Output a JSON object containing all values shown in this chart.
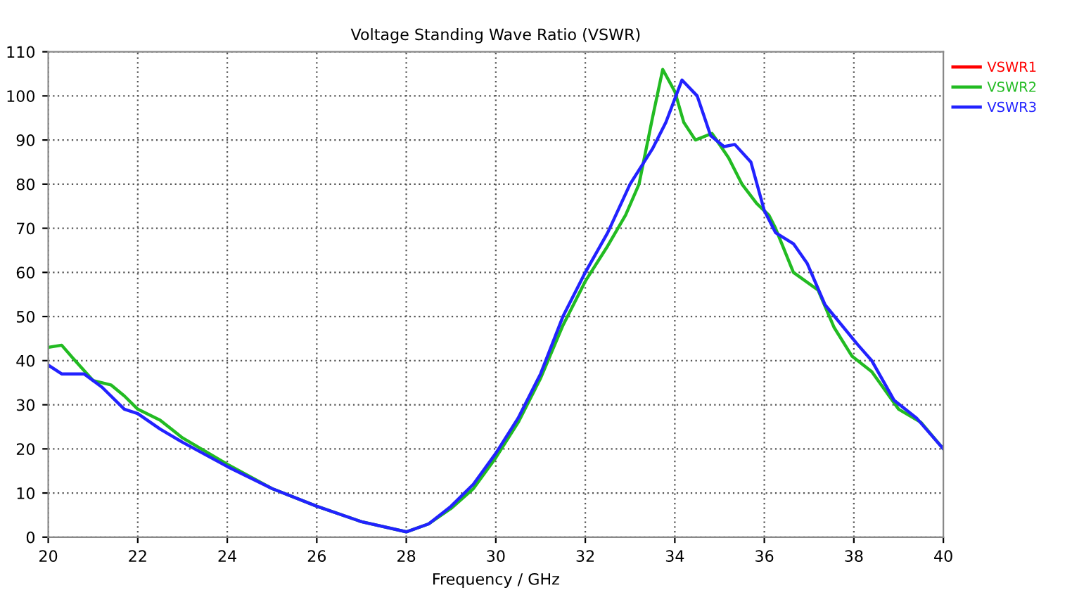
{
  "chart_data": {
    "type": "line",
    "title": "Voltage Standing Wave Ratio (VSWR)",
    "xlabel": "Frequency / GHz",
    "xlim": [
      20,
      40
    ],
    "xticks": [
      20,
      22,
      24,
      26,
      28,
      30,
      32,
      34,
      36,
      38,
      40
    ],
    "ylim": [
      0,
      110
    ],
    "yticks": [
      0,
      10,
      20,
      30,
      40,
      50,
      60,
      70,
      80,
      90,
      100,
      110
    ],
    "grid": true,
    "legend": "top right",
    "line_style": "solid",
    "marker": "none",
    "series": [
      {
        "name": "VSWR1",
        "color": "#ff0000"
      },
      {
        "name": "VSWR2",
        "color": "#22bb22",
        "x": [
          20,
          20.3,
          20.6,
          21,
          21.4,
          21.7,
          22,
          22.5,
          23,
          23.5,
          24,
          25,
          26,
          27,
          28,
          28.5,
          29,
          29.5,
          30,
          30.5,
          31,
          31.5,
          32,
          32.5,
          32.9,
          33.2,
          33.5,
          33.73,
          34,
          34.2,
          34.46,
          34.83,
          35.2,
          35.5,
          35.83,
          36.1,
          36.25,
          36.65,
          37.2,
          37.56,
          37.96,
          38.4,
          39,
          39.5,
          40
        ],
        "values": [
          43,
          43.5,
          40,
          35.5,
          34.5,
          32,
          29,
          26.5,
          22.5,
          19.5,
          16.5,
          11,
          7,
          3.5,
          1.2,
          3,
          6.5,
          11,
          18,
          26,
          36,
          48,
          58,
          66,
          73,
          80,
          95,
          106,
          101,
          94,
          90,
          91.5,
          86,
          80,
          75.6,
          73,
          70,
          60,
          56,
          47.5,
          41,
          37.5,
          29,
          26,
          20
        ]
      },
      {
        "name": "VSWR3",
        "color": "#2222ff",
        "x": [
          20,
          20.3,
          20.8,
          21.2,
          21.7,
          22,
          22.5,
          23,
          24,
          25,
          26,
          27,
          28,
          28.5,
          29,
          29.5,
          30,
          30.5,
          31,
          31.5,
          32,
          32.5,
          33,
          33.5,
          33.8,
          34.16,
          34.5,
          34.8,
          35.1,
          35.34,
          35.7,
          36,
          36.25,
          36.65,
          36.96,
          37.36,
          38.08,
          38.4,
          38.9,
          39.4,
          40
        ],
        "values": [
          39,
          37,
          37,
          34,
          29,
          28,
          24.5,
          21.5,
          16,
          11,
          7,
          3.5,
          1.2,
          3,
          7,
          12,
          19,
          27,
          37,
          50,
          60,
          69,
          80,
          88,
          94,
          103.6,
          100,
          91,
          88.5,
          89,
          85,
          74,
          69,
          66.5,
          62,
          52.6,
          43.7,
          40,
          31,
          27,
          20
        ]
      }
    ]
  }
}
